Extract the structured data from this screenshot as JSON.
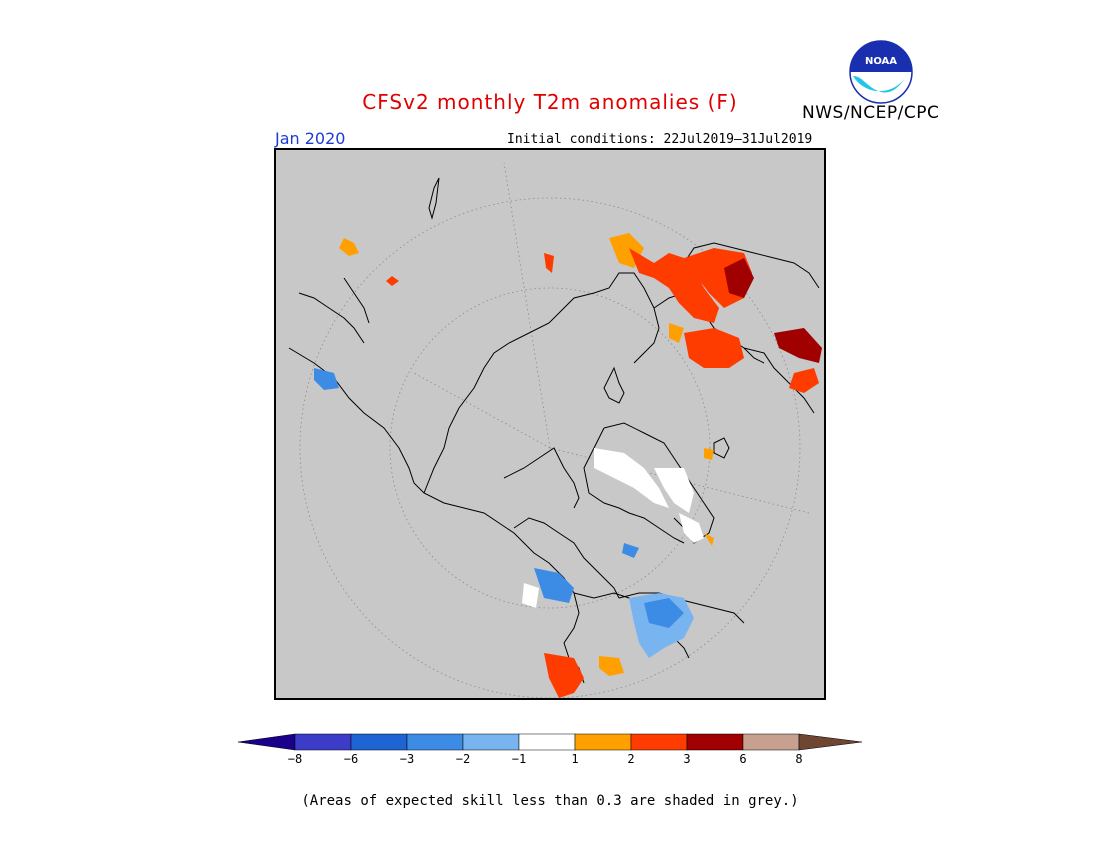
{
  "header": {
    "title": "CFSv2 monthly T2m anomalies (F)",
    "agency": "NWS/NCEP/CPC",
    "logo_text": "NOAA",
    "month": "Jan 2020",
    "initial_conditions": "Initial conditions: 22Jul2019–31Jul2019"
  },
  "colors": {
    "title": "#e00000",
    "month": "#1c3cd6",
    "map_background": "#c8c8c8",
    "coastline": "#000000"
  },
  "legend": {
    "tick_labels": [
      "−8",
      "−6",
      "−3",
      "−2",
      "−1",
      "1",
      "2",
      "3",
      "6",
      "8"
    ],
    "bins": [
      {
        "range": "<-8",
        "color": "#1a008a"
      },
      {
        "range": "-8..-6",
        "color": "#3c3cc8"
      },
      {
        "range": "-6..-3",
        "color": "#1e64d2"
      },
      {
        "range": "-3..-2",
        "color": "#3c8ce6"
      },
      {
        "range": "-2..-1",
        "color": "#78b4f0"
      },
      {
        "range": "-1..1",
        "color": "#ffffff"
      },
      {
        "range": "1..2",
        "color": "#ffa000"
      },
      {
        "range": "2..3",
        "color": "#ff3c00"
      },
      {
        "range": "3..6",
        "color": "#a00000"
      },
      {
        "range": "6..8",
        "color": "#c8a090"
      },
      {
        "range": ">8",
        "color": "#6e4632"
      }
    ]
  },
  "footnote": "(Areas of expected skill less than 0.3 are shaded in grey.)"
}
